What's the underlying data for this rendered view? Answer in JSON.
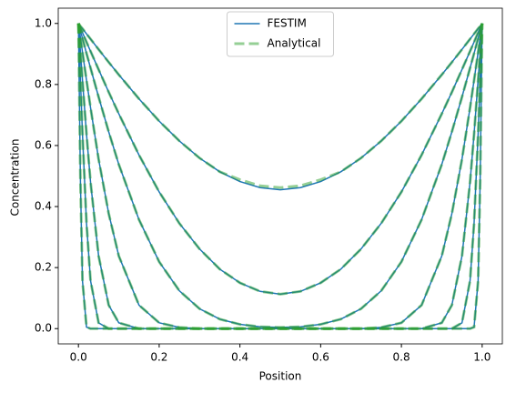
{
  "chart_data": {
    "type": "line",
    "xlabel": "Position",
    "ylabel": "Concentration",
    "x": [
      0,
      0.005,
      0.01,
      0.02,
      0.03,
      0.05,
      0.075,
      0.1,
      0.15,
      0.2,
      0.25,
      0.3,
      0.35,
      0.4,
      0.45,
      0.5,
      0.55,
      0.6,
      0.65,
      0.7,
      0.75,
      0.8,
      0.85,
      0.9,
      0.925,
      0.95,
      0.97,
      0.98,
      0.99,
      0.995,
      1
    ],
    "series": [
      {
        "name": "FESTIM",
        "color": "#1f77b4",
        "dashed": false,
        "values": [
          [
            1,
            0.991,
            0.983,
            0.966,
            0.949,
            0.915,
            0.873,
            0.832,
            0.753,
            0.68,
            0.615,
            0.559,
            0.514,
            0.482,
            0.462,
            0.455,
            0.462,
            0.482,
            0.514,
            0.559,
            0.615,
            0.68,
            0.753,
            0.832,
            0.873,
            0.915,
            0.949,
            0.966,
            0.983,
            0.991,
            1
          ],
          [
            1,
            0.985,
            0.97,
            0.939,
            0.909,
            0.849,
            0.775,
            0.704,
            0.569,
            0.448,
            0.345,
            0.261,
            0.195,
            0.15,
            0.122,
            0.113,
            0.122,
            0.15,
            0.195,
            0.261,
            0.345,
            0.448,
            0.569,
            0.704,
            0.775,
            0.849,
            0.909,
            0.939,
            0.97,
            0.985,
            1
          ],
          [
            1,
            0.976,
            0.951,
            0.902,
            0.854,
            0.759,
            0.645,
            0.538,
            0.357,
            0.219,
            0.124,
            0.065,
            0.031,
            0.014,
            0.006,
            0.004,
            0.006,
            0.014,
            0.031,
            0.065,
            0.124,
            0.219,
            0.357,
            0.538,
            0.645,
            0.759,
            0.854,
            0.902,
            0.951,
            0.976,
            1
          ],
          [
            1,
            0.953,
            0.906,
            0.814,
            0.724,
            0.555,
            0.377,
            0.238,
            0.077,
            0.019,
            0.004,
            0,
            0,
            0,
            0,
            0,
            0,
            0,
            0,
            0,
            0.004,
            0.019,
            0.077,
            0.238,
            0.377,
            0.555,
            0.724,
            0.814,
            0.906,
            0.953,
            1
          ],
          [
            1,
            0.906,
            0.814,
            0.638,
            0.48,
            0.238,
            0.077,
            0.019,
            0,
            0,
            0,
            0,
            0,
            0,
            0,
            0,
            0,
            0,
            0,
            0,
            0,
            0,
            0,
            0.019,
            0.077,
            0.238,
            0.48,
            0.638,
            0.814,
            0.906,
            1
          ],
          [
            1,
            0.814,
            0.638,
            0.346,
            0.157,
            0.019,
            0,
            0,
            0,
            0,
            0,
            0,
            0,
            0,
            0,
            0,
            0,
            0,
            0,
            0,
            0,
            0,
            0,
            0,
            0,
            0.019,
            0.157,
            0.346,
            0.638,
            0.814,
            1
          ],
          [
            1,
            0.48,
            0.157,
            0.005,
            0,
            0,
            0,
            0,
            0,
            0,
            0,
            0,
            0,
            0,
            0,
            0,
            0,
            0,
            0,
            0,
            0,
            0,
            0,
            0,
            0,
            0,
            0,
            0.005,
            0.157,
            0.48,
            1
          ]
        ]
      },
      {
        "name": "Analytical",
        "color": "#2ca02c",
        "dashed": true,
        "values": [
          [
            1,
            0.991,
            0.983,
            0.966,
            0.949,
            0.915,
            0.873,
            0.832,
            0.753,
            0.68,
            0.615,
            0.559,
            0.514,
            0.488,
            0.468,
            0.462,
            0.468,
            0.488,
            0.514,
            0.559,
            0.615,
            0.68,
            0.753,
            0.832,
            0.873,
            0.915,
            0.949,
            0.966,
            0.983,
            0.991,
            1
          ],
          [
            1,
            0.985,
            0.97,
            0.939,
            0.909,
            0.849,
            0.775,
            0.704,
            0.569,
            0.448,
            0.345,
            0.261,
            0.195,
            0.15,
            0.122,
            0.113,
            0.122,
            0.15,
            0.195,
            0.261,
            0.345,
            0.448,
            0.569,
            0.704,
            0.775,
            0.849,
            0.909,
            0.939,
            0.97,
            0.985,
            1
          ],
          [
            1,
            0.976,
            0.951,
            0.902,
            0.854,
            0.759,
            0.645,
            0.538,
            0.357,
            0.219,
            0.124,
            0.065,
            0.031,
            0.014,
            0.006,
            0.004,
            0.006,
            0.014,
            0.031,
            0.065,
            0.124,
            0.219,
            0.357,
            0.538,
            0.645,
            0.759,
            0.854,
            0.902,
            0.951,
            0.976,
            1
          ],
          [
            1,
            0.953,
            0.906,
            0.814,
            0.724,
            0.555,
            0.377,
            0.238,
            0.077,
            0.019,
            0.004,
            0,
            0,
            0,
            0,
            0,
            0,
            0,
            0,
            0,
            0.004,
            0.019,
            0.077,
            0.238,
            0.377,
            0.555,
            0.724,
            0.814,
            0.906,
            0.953,
            1
          ],
          [
            1,
            0.906,
            0.814,
            0.638,
            0.48,
            0.238,
            0.077,
            0.019,
            0,
            0,
            0,
            0,
            0,
            0,
            0,
            0,
            0,
            0,
            0,
            0,
            0,
            0,
            0,
            0.019,
            0.077,
            0.238,
            0.48,
            0.638,
            0.814,
            0.906,
            1
          ],
          [
            1,
            0.814,
            0.638,
            0.346,
            0.157,
            0.019,
            0,
            0,
            0,
            0,
            0,
            0,
            0,
            0,
            0,
            0,
            0,
            0,
            0,
            0,
            0,
            0,
            0,
            0,
            0,
            0.019,
            0.157,
            0.346,
            0.638,
            0.814,
            1
          ],
          [
            1,
            0.48,
            0.157,
            0.005,
            0,
            0,
            0,
            0,
            0,
            0,
            0,
            0,
            0,
            0,
            0,
            0,
            0,
            0,
            0,
            0,
            0,
            0,
            0,
            0,
            0,
            0,
            0,
            0.005,
            0.157,
            0.48,
            1
          ]
        ]
      }
    ],
    "xlim": [
      -0.05,
      1.05
    ],
    "ylim": [
      -0.05,
      1.05
    ],
    "xticks": [
      {
        "value": 0,
        "label": "0.0"
      },
      {
        "value": 0.2,
        "label": "0.2"
      },
      {
        "value": 0.4,
        "label": "0.4"
      },
      {
        "value": 0.6,
        "label": "0.6"
      },
      {
        "value": 0.8,
        "label": "0.8"
      },
      {
        "value": 1,
        "label": "1.0"
      }
    ],
    "yticks": [
      {
        "value": 0,
        "label": "0.0"
      },
      {
        "value": 0.2,
        "label": "0.2"
      },
      {
        "value": 0.4,
        "label": "0.4"
      },
      {
        "value": 0.6,
        "label": "0.6"
      },
      {
        "value": 0.8,
        "label": "0.8"
      },
      {
        "value": 1,
        "label": "1.0"
      }
    ],
    "legend": "upper center",
    "grid": false
  }
}
